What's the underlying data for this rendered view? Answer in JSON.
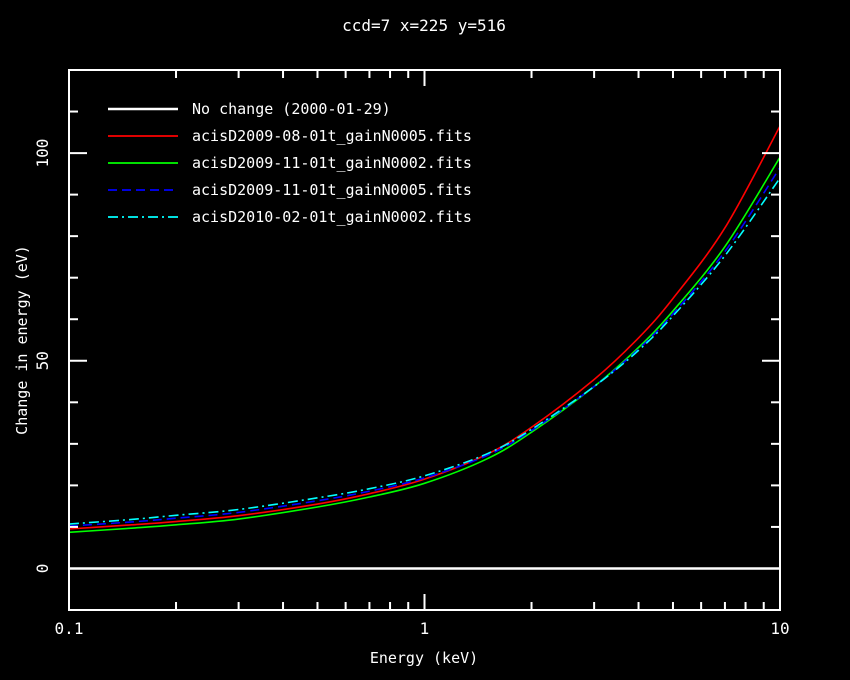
{
  "figure": {
    "background": "#000000",
    "foreground": "#ffffff"
  },
  "chart_data": {
    "type": "line",
    "title": "ccd=7 x=225 y=516",
    "xlabel": "Energy (keV)",
    "ylabel": "Change in energy (eV)",
    "x_scale": "log",
    "xlim": [
      0.1,
      10
    ],
    "ylim": [
      -10,
      120
    ],
    "x_ticks_major": [
      0.1,
      1,
      10
    ],
    "x_tick_labels": [
      "0.1",
      "1",
      "10"
    ],
    "x_ticks_minor": [
      0.2,
      0.3,
      0.4,
      0.5,
      0.6,
      0.7,
      0.8,
      0.9,
      2,
      3,
      4,
      5,
      6,
      7,
      8,
      9
    ],
    "y_ticks_major": [
      0,
      50,
      100
    ],
    "y_tick_labels": [
      "0",
      "50",
      "100"
    ],
    "y_ticks_minor": [
      10,
      20,
      30,
      40,
      60,
      70,
      80,
      90,
      110
    ],
    "grid": false,
    "legend_position": "top-left",
    "axis_color": "#ffffff",
    "x": [
      0.1,
      0.15,
      0.2,
      0.3,
      0.5,
      0.7,
      1.0,
      1.5,
      2.0,
      3.0,
      4.0,
      5.0,
      7.0,
      10.0
    ],
    "series": [
      {
        "name": "No change (2000-01-29)",
        "color": "#ffffff",
        "style": "solid",
        "width": 2.5,
        "values": [
          0,
          0,
          0,
          0,
          0,
          0,
          0,
          0,
          0,
          0,
          0,
          0,
          0,
          0
        ]
      },
      {
        "name": "acisD2009-08-01t_gainN0005.fits",
        "color": "#ff0000",
        "style": "solid",
        "width": 1.6,
        "values": [
          9.5,
          10.5,
          11.3,
          12.7,
          15.5,
          18.0,
          21.5,
          27.5,
          34.0,
          45.5,
          55.5,
          65.0,
          82.0,
          106.5
        ]
      },
      {
        "name": "acisD2009-11-01t_gainN0002.fits",
        "color": "#00ff00",
        "style": "solid",
        "width": 1.6,
        "values": [
          8.7,
          9.7,
          10.5,
          11.9,
          14.8,
          17.2,
          20.5,
          26.4,
          32.8,
          43.8,
          53.2,
          62.0,
          77.5,
          99.0
        ]
      },
      {
        "name": "acisD2009-11-01t_gainN0005.fits",
        "color": "#0000ff",
        "style": "dashed",
        "width": 1.6,
        "values": [
          10.2,
          11.2,
          12.1,
          13.5,
          16.3,
          18.6,
          21.8,
          27.2,
          33.2,
          43.8,
          52.8,
          61.3,
          76.3,
          96.5
        ]
      },
      {
        "name": "acisD2010-02-01t_gainN0002.fits",
        "color": "#00ffff",
        "style": "dashdot",
        "width": 1.6,
        "values": [
          10.7,
          11.8,
          12.8,
          14.2,
          17.0,
          19.2,
          22.3,
          27.6,
          33.5,
          43.8,
          52.5,
          60.8,
          75.3,
          94.0
        ]
      }
    ]
  }
}
